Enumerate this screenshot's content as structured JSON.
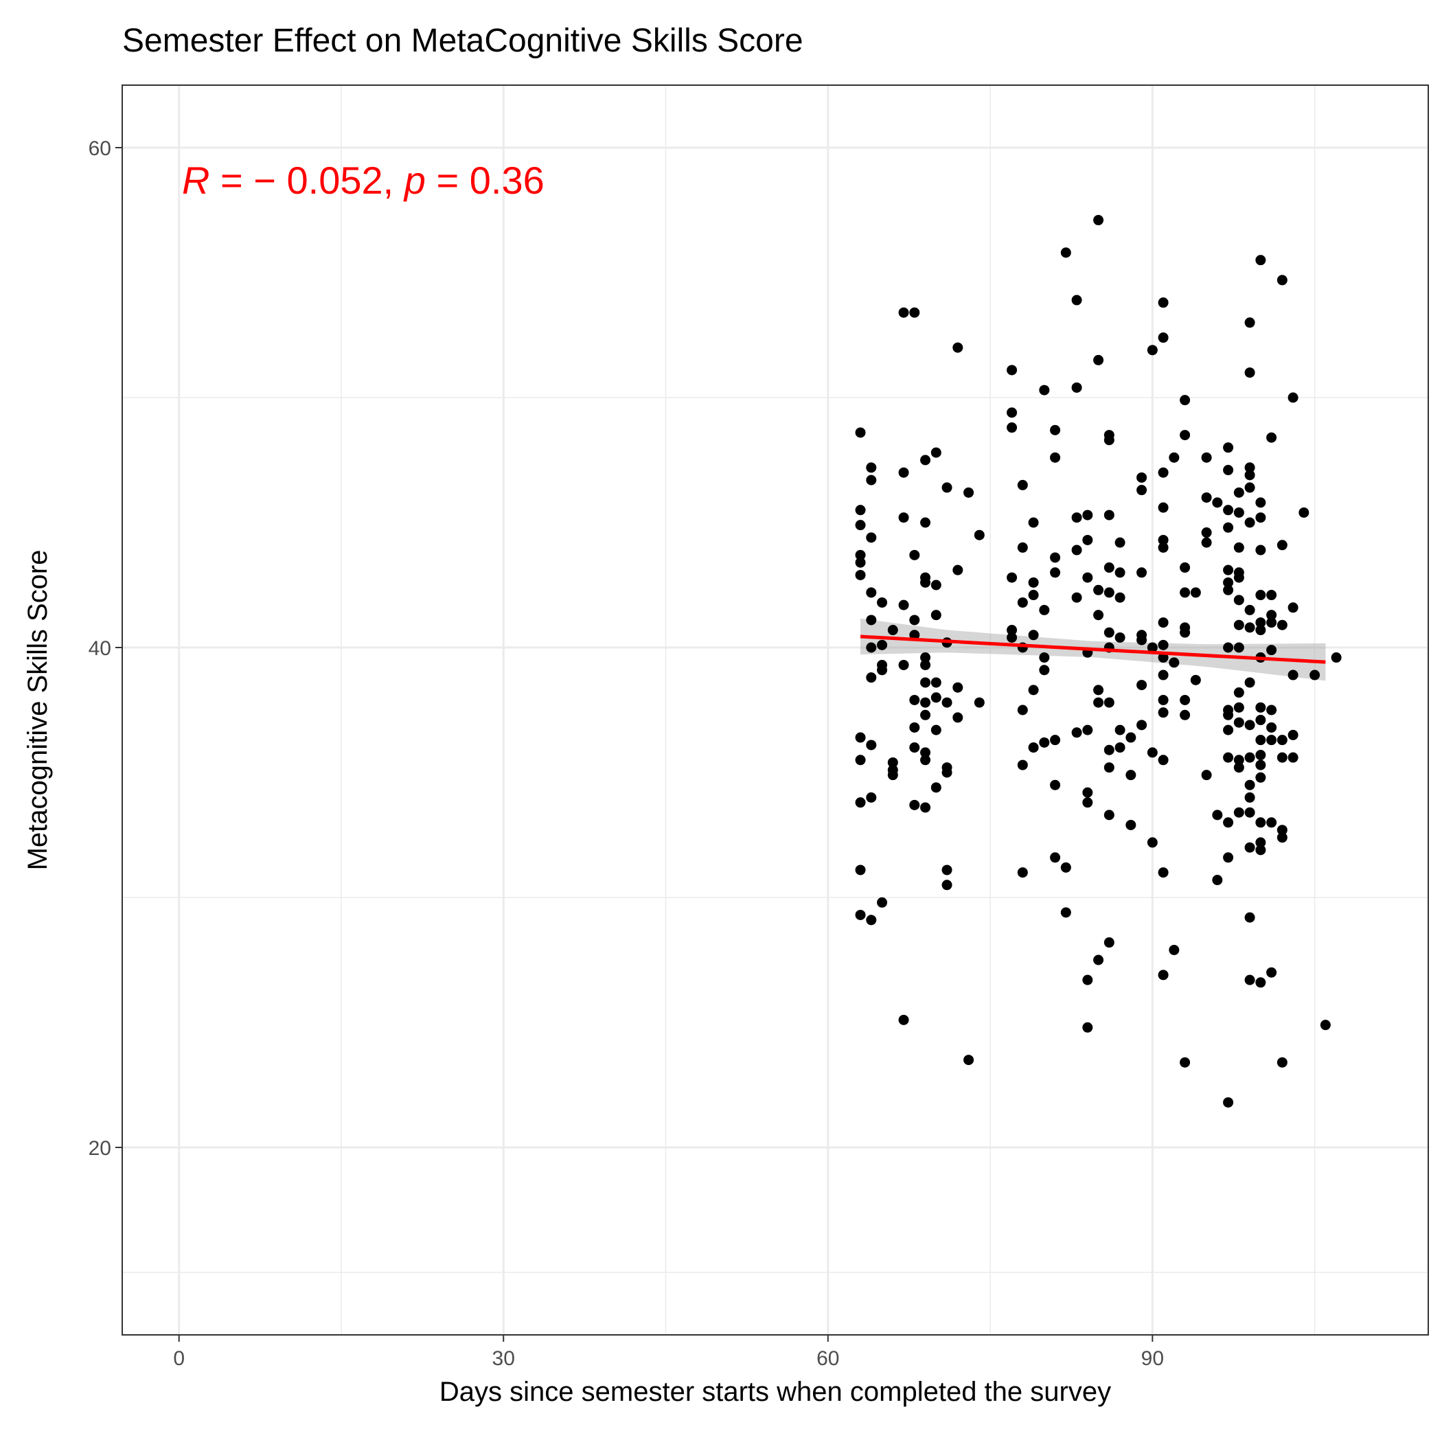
{
  "chart_data": {
    "type": "scatter",
    "title": "Semester Effect on MetaCognitive Skills Score",
    "xlabel": "Days since semester starts when completed the survey",
    "ylabel": "Metacognitive Skills Score",
    "xlim": [
      -5.25,
      115.5
    ],
    "ylim": [
      12.5,
      62.5
    ],
    "x_ticks": [
      0,
      30,
      60,
      90
    ],
    "y_ticks": [
      20,
      40,
      60
    ],
    "x_tick_labels": [
      "0",
      "30",
      "60",
      "90"
    ],
    "y_tick_labels": [
      "20",
      "40",
      "60"
    ],
    "x_minor_ticks": [
      15,
      45,
      75,
      105
    ],
    "y_minor_ticks": [
      15,
      30,
      50
    ],
    "grid": true,
    "annotation": {
      "r_symbol": "R",
      "mid": " = − 0.052, ",
      "p_symbol": "p",
      "tail": " = 0.36",
      "color": "#ff0000"
    },
    "point_color": "#000000",
    "trend": {
      "color": "#ff0000",
      "band_color": "#999999",
      "x_range": [
        63,
        106
      ],
      "y_start": 40.44,
      "y_end": 39.42,
      "band": [
        [
          63,
          0.72
        ],
        [
          71,
          0.45
        ],
        [
          84.5,
          0.32
        ],
        [
          95,
          0.45
        ],
        [
          106,
          0.75
        ]
      ]
    },
    "points": [
      [
        63,
        48.6
      ],
      [
        63,
        45.5
      ],
      [
        63,
        44.9
      ],
      [
        63,
        43.7
      ],
      [
        63,
        43.4
      ],
      [
        63,
        42.9
      ],
      [
        63,
        36.4
      ],
      [
        63,
        35.5
      ],
      [
        63,
        33.8
      ],
      [
        63,
        31.1
      ],
      [
        63,
        29.3
      ],
      [
        64,
        47.2
      ],
      [
        64,
        46.7
      ],
      [
        64,
        44.4
      ],
      [
        64,
        42.2
      ],
      [
        64,
        41.1
      ],
      [
        64,
        40.0
      ],
      [
        64,
        38.8
      ],
      [
        64,
        36.1
      ],
      [
        64,
        34.0
      ],
      [
        64,
        29.1
      ],
      [
        65,
        41.8
      ],
      [
        65,
        40.1
      ],
      [
        65,
        39.3
      ],
      [
        65,
        39.1
      ],
      [
        65,
        29.8
      ],
      [
        66,
        40.7
      ],
      [
        66,
        35.4
      ],
      [
        66,
        35.1
      ],
      [
        66,
        34.9
      ],
      [
        67,
        53.4
      ],
      [
        67,
        47.0
      ],
      [
        67,
        45.2
      ],
      [
        67,
        41.7
      ],
      [
        67,
        39.3
      ],
      [
        67,
        25.1
      ],
      [
        68,
        53.4
      ],
      [
        68,
        43.7
      ],
      [
        68,
        41.1
      ],
      [
        68,
        40.5
      ],
      [
        68,
        37.9
      ],
      [
        68,
        36.8
      ],
      [
        68,
        36.0
      ],
      [
        68,
        33.7
      ],
      [
        69,
        47.5
      ],
      [
        69,
        45.0
      ],
      [
        69,
        42.8
      ],
      [
        69,
        42.6
      ],
      [
        69,
        39.6
      ],
      [
        69,
        39.3
      ],
      [
        69,
        38.6
      ],
      [
        69,
        37.8
      ],
      [
        69,
        37.3
      ],
      [
        69,
        35.8
      ],
      [
        69,
        35.5
      ],
      [
        69,
        33.6
      ],
      [
        70,
        47.8
      ],
      [
        70,
        42.5
      ],
      [
        70,
        41.3
      ],
      [
        70,
        38.6
      ],
      [
        70,
        38.0
      ],
      [
        70,
        36.7
      ],
      [
        70,
        34.4
      ],
      [
        71,
        46.4
      ],
      [
        71,
        40.2
      ],
      [
        71,
        37.8
      ],
      [
        71,
        35.2
      ],
      [
        71,
        35.0
      ],
      [
        71,
        31.1
      ],
      [
        71,
        30.5
      ],
      [
        72,
        52.0
      ],
      [
        72,
        43.1
      ],
      [
        72,
        38.4
      ],
      [
        72,
        37.2
      ],
      [
        73,
        46.2
      ],
      [
        73,
        23.5
      ],
      [
        74,
        44.5
      ],
      [
        74,
        37.8
      ],
      [
        77,
        51.1
      ],
      [
        77,
        49.4
      ],
      [
        77,
        48.8
      ],
      [
        77,
        42.8
      ],
      [
        77,
        40.7
      ],
      [
        77,
        40.4
      ],
      [
        78,
        46.5
      ],
      [
        78,
        44.0
      ],
      [
        78,
        41.8
      ],
      [
        78,
        40.0
      ],
      [
        78,
        37.5
      ],
      [
        78,
        35.3
      ],
      [
        78,
        31.0
      ],
      [
        79,
        45.0
      ],
      [
        79,
        42.6
      ],
      [
        79,
        42.1
      ],
      [
        79,
        40.5
      ],
      [
        79,
        38.3
      ],
      [
        79,
        36.0
      ],
      [
        80,
        50.3
      ],
      [
        80,
        41.5
      ],
      [
        80,
        39.6
      ],
      [
        80,
        39.1
      ],
      [
        80,
        36.2
      ],
      [
        81,
        48.7
      ],
      [
        81,
        47.6
      ],
      [
        81,
        43.6
      ],
      [
        81,
        43.0
      ],
      [
        81,
        36.3
      ],
      [
        81,
        34.5
      ],
      [
        81,
        31.6
      ],
      [
        82,
        55.8
      ],
      [
        82,
        31.2
      ],
      [
        82,
        29.4
      ],
      [
        83,
        53.9
      ],
      [
        83,
        50.4
      ],
      [
        83,
        45.2
      ],
      [
        83,
        43.9
      ],
      [
        83,
        42.0
      ],
      [
        83,
        36.6
      ],
      [
        84,
        45.3
      ],
      [
        84,
        44.3
      ],
      [
        84,
        42.8
      ],
      [
        84,
        39.8
      ],
      [
        84,
        36.7
      ],
      [
        84,
        34.2
      ],
      [
        84,
        33.8
      ],
      [
        84,
        26.7
      ],
      [
        84,
        24.8
      ],
      [
        85,
        57.1
      ],
      [
        85,
        51.5
      ],
      [
        85,
        42.3
      ],
      [
        85,
        41.3
      ],
      [
        85,
        38.3
      ],
      [
        85,
        37.8
      ],
      [
        85,
        27.5
      ],
      [
        86,
        48.5
      ],
      [
        86,
        48.3
      ],
      [
        86,
        45.3
      ],
      [
        86,
        43.2
      ],
      [
        86,
        42.2
      ],
      [
        86,
        40.6
      ],
      [
        86,
        40.0
      ],
      [
        86,
        37.8
      ],
      [
        86,
        35.9
      ],
      [
        86,
        35.2
      ],
      [
        86,
        33.3
      ],
      [
        86,
        28.2
      ],
      [
        87,
        44.2
      ],
      [
        87,
        43.0
      ],
      [
        87,
        42.0
      ],
      [
        87,
        40.4
      ],
      [
        87,
        36.7
      ],
      [
        87,
        36.0
      ],
      [
        88,
        36.4
      ],
      [
        88,
        34.9
      ],
      [
        88,
        32.9
      ],
      [
        89,
        46.8
      ],
      [
        89,
        46.3
      ],
      [
        89,
        43.0
      ],
      [
        89,
        40.5
      ],
      [
        89,
        40.3
      ],
      [
        89,
        38.5
      ],
      [
        89,
        36.9
      ],
      [
        90,
        51.9
      ],
      [
        90,
        40.0
      ],
      [
        90,
        35.8
      ],
      [
        90,
        32.2
      ],
      [
        91,
        53.8
      ],
      [
        91,
        52.4
      ],
      [
        91,
        47.0
      ],
      [
        91,
        45.6
      ],
      [
        91,
        44.3
      ],
      [
        91,
        44.0
      ],
      [
        91,
        41.0
      ],
      [
        91,
        40.1
      ],
      [
        91,
        39.6
      ],
      [
        91,
        38.9
      ],
      [
        91,
        37.9
      ],
      [
        91,
        37.4
      ],
      [
        91,
        35.5
      ],
      [
        91,
        31.0
      ],
      [
        91,
        26.9
      ],
      [
        92,
        47.6
      ],
      [
        92,
        39.4
      ],
      [
        92,
        27.9
      ],
      [
        93,
        49.9
      ],
      [
        93,
        48.5
      ],
      [
        93,
        43.2
      ],
      [
        93,
        42.2
      ],
      [
        93,
        40.8
      ],
      [
        93,
        40.6
      ],
      [
        93,
        37.9
      ],
      [
        93,
        37.3
      ],
      [
        93,
        23.4
      ],
      [
        94,
        42.2
      ],
      [
        94,
        38.7
      ],
      [
        95,
        47.6
      ],
      [
        95,
        46.0
      ],
      [
        95,
        44.6
      ],
      [
        95,
        44.2
      ],
      [
        95,
        34.9
      ],
      [
        96,
        45.8
      ],
      [
        96,
        33.3
      ],
      [
        96,
        30.7
      ],
      [
        97,
        48.0
      ],
      [
        97,
        47.1
      ],
      [
        97,
        45.5
      ],
      [
        97,
        44.8
      ],
      [
        97,
        43.1
      ],
      [
        97,
        42.6
      ],
      [
        97,
        42.3
      ],
      [
        97,
        40.0
      ],
      [
        97,
        37.5
      ],
      [
        97,
        37.3
      ],
      [
        97,
        36.7
      ],
      [
        97,
        35.6
      ],
      [
        97,
        33.0
      ],
      [
        97,
        31.6
      ],
      [
        97,
        21.8
      ],
      [
        98,
        46.2
      ],
      [
        98,
        45.4
      ],
      [
        98,
        44.0
      ],
      [
        98,
        43.0
      ],
      [
        98,
        42.8
      ],
      [
        98,
        41.9
      ],
      [
        98,
        40.9
      ],
      [
        98,
        40.0
      ],
      [
        98,
        38.2
      ],
      [
        98,
        37.6
      ],
      [
        98,
        37.0
      ],
      [
        98,
        35.5
      ],
      [
        98,
        35.2
      ],
      [
        98,
        33.4
      ],
      [
        99,
        53.0
      ],
      [
        99,
        51.0
      ],
      [
        99,
        47.2
      ],
      [
        99,
        46.9
      ],
      [
        99,
        46.4
      ],
      [
        99,
        45.0
      ],
      [
        99,
        41.5
      ],
      [
        99,
        40.8
      ],
      [
        99,
        38.6
      ],
      [
        99,
        36.9
      ],
      [
        99,
        35.6
      ],
      [
        99,
        34.5
      ],
      [
        99,
        34.0
      ],
      [
        99,
        33.4
      ],
      [
        99,
        32.0
      ],
      [
        99,
        29.2
      ],
      [
        99,
        26.7
      ],
      [
        100,
        55.5
      ],
      [
        100,
        45.8
      ],
      [
        100,
        45.2
      ],
      [
        100,
        43.9
      ],
      [
        100,
        42.1
      ],
      [
        100,
        41.0
      ],
      [
        100,
        40.7
      ],
      [
        100,
        39.6
      ],
      [
        100,
        37.6
      ],
      [
        100,
        37.1
      ],
      [
        100,
        36.3
      ],
      [
        100,
        35.7
      ],
      [
        100,
        35.3
      ],
      [
        100,
        34.8
      ],
      [
        100,
        33.0
      ],
      [
        100,
        32.2
      ],
      [
        100,
        31.9
      ],
      [
        100,
        26.6
      ],
      [
        101,
        48.4
      ],
      [
        101,
        42.1
      ],
      [
        101,
        41.3
      ],
      [
        101,
        41.0
      ],
      [
        101,
        39.9
      ],
      [
        101,
        37.5
      ],
      [
        101,
        36.8
      ],
      [
        101,
        36.3
      ],
      [
        101,
        33.0
      ],
      [
        101,
        27.0
      ],
      [
        102,
        54.7
      ],
      [
        102,
        44.1
      ],
      [
        102,
        40.9
      ],
      [
        102,
        36.3
      ],
      [
        102,
        35.6
      ],
      [
        102,
        32.7
      ],
      [
        102,
        32.4
      ],
      [
        102,
        23.4
      ],
      [
        103,
        50.0
      ],
      [
        103,
        41.6
      ],
      [
        103,
        38.9
      ],
      [
        103,
        36.5
      ],
      [
        103,
        35.6
      ],
      [
        104,
        45.4
      ],
      [
        105,
        38.9
      ],
      [
        106,
        24.9
      ],
      [
        107,
        39.6
      ]
    ]
  }
}
